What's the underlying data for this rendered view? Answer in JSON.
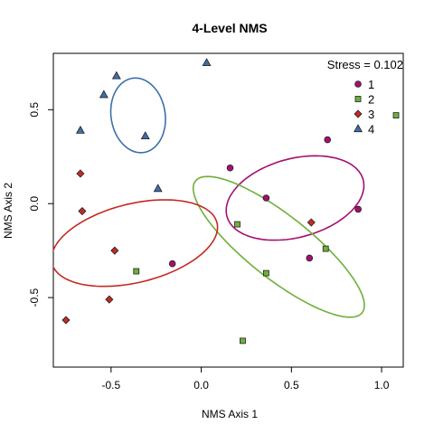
{
  "chart_data": {
    "type": "scatter",
    "title": "4-Level NMS",
    "xlabel": "NMS Axis 1",
    "ylabel": "NMS Axis 2",
    "xlim": [
      -0.82,
      1.12
    ],
    "ylim": [
      -0.87,
      0.8
    ],
    "xticks": [
      -0.5,
      0.0,
      0.5,
      1.0
    ],
    "xtick_labels": [
      "-0.5",
      "0.0",
      "0.5",
      "1.0"
    ],
    "yticks": [
      -0.5,
      0.0,
      0.5
    ],
    "ytick_labels": [
      "-0.5",
      "0.0",
      "0.5"
    ],
    "annotation": "Stress = 0.102",
    "legend_position": "top-right",
    "series": [
      {
        "name": "1",
        "color": "#a3106e",
        "shape": "circle",
        "points": [
          [
            0.7,
            0.34
          ],
          [
            0.16,
            0.19
          ],
          [
            0.36,
            0.03
          ],
          [
            0.87,
            -0.03
          ],
          [
            0.6,
            -0.29
          ],
          [
            -0.16,
            -0.32
          ]
        ],
        "ellipse": {
          "cx": 0.52,
          "cy": 0.03,
          "rx": 0.39,
          "ry": 0.21,
          "angle_deg": 14
        }
      },
      {
        "name": "2",
        "color": "#6fb03a",
        "shape": "square",
        "points": [
          [
            1.08,
            0.47
          ],
          [
            0.2,
            -0.11
          ],
          [
            0.69,
            -0.24
          ],
          [
            0.36,
            -0.37
          ],
          [
            -0.36,
            -0.36
          ],
          [
            0.23,
            -0.73
          ]
        ],
        "ellipse": {
          "cx": 0.43,
          "cy": -0.23,
          "rx": 0.58,
          "ry": 0.17,
          "angle_deg": -37
        }
      },
      {
        "name": "3",
        "color": "#c42a23",
        "shape": "diamond",
        "points": [
          [
            -0.67,
            0.16
          ],
          [
            -0.66,
            -0.04
          ],
          [
            0.61,
            -0.1
          ],
          [
            -0.48,
            -0.25
          ],
          [
            -0.51,
            -0.51
          ],
          [
            -0.75,
            -0.62
          ]
        ],
        "ellipse": {
          "cx": -0.37,
          "cy": -0.21,
          "rx": 0.47,
          "ry": 0.21,
          "angle_deg": 13
        }
      },
      {
        "name": "4",
        "color": "#3e6faa",
        "shape": "triangle",
        "points": [
          [
            0.03,
            0.75
          ],
          [
            -0.47,
            0.68
          ],
          [
            -0.54,
            0.58
          ],
          [
            -0.67,
            0.39
          ],
          [
            -0.31,
            0.36
          ],
          [
            -0.24,
            0.08
          ]
        ],
        "ellipse": {
          "cx": -0.35,
          "cy": 0.47,
          "rx": 0.2,
          "ry": 0.15,
          "angle_deg": 100
        }
      }
    ]
  }
}
